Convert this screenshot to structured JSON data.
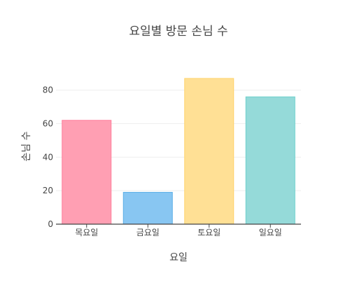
{
  "chart_data": {
    "type": "bar",
    "title": "요일별 방문 손님 수",
    "xlabel": "요일",
    "ylabel": "손님 수",
    "categories": [
      "목요일",
      "금요일",
      "토요일",
      "일요일"
    ],
    "values": [
      62,
      19,
      87,
      76
    ],
    "ylim": [
      0,
      92
    ],
    "yticks": [
      0,
      20,
      40,
      60,
      80
    ],
    "grid": true,
    "legend": "none",
    "colors": [
      "#ff9fb3",
      "#88c6f2",
      "#ffe095",
      "#95dad9"
    ],
    "border_colors": [
      "#ff7f9c",
      "#5aaee6",
      "#ffd36b",
      "#6ccfcc"
    ]
  }
}
